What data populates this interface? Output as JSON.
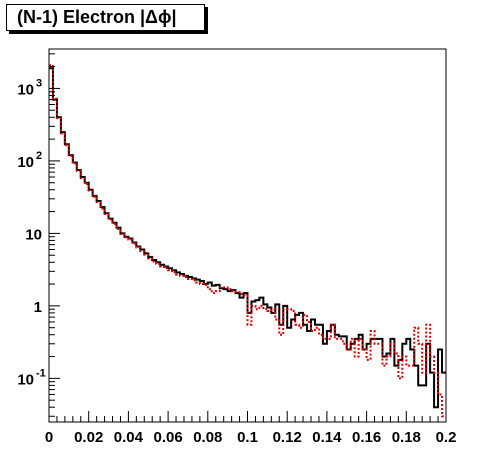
{
  "title": "(N-1) Electron |Δϕ|",
  "chart_data": {
    "type": "step",
    "title": "(N-1) Electron |Δϕ|",
    "xlabel": "",
    "ylabel": "",
    "xlim": [
      0,
      0.2
    ],
    "ylim": [
      0.025,
      3500
    ],
    "y_scale": "log",
    "x_tick_labels": [
      "0",
      "0.02",
      "0.04",
      "0.06",
      "0.08",
      "0.1",
      "0.12",
      "0.14",
      "0.16",
      "0.18",
      "0.2"
    ],
    "y_tick_labels": [
      {
        "value": 0.1,
        "base": "10",
        "exp": "-1"
      },
      {
        "value": 1,
        "base": "1",
        "exp": ""
      },
      {
        "value": 10,
        "base": "10",
        "exp": ""
      },
      {
        "value": 100,
        "base": "10",
        "exp": "2"
      },
      {
        "value": 1000,
        "base": "10",
        "exp": "3"
      }
    ],
    "bin_width": 0.002,
    "series": [
      {
        "color": "#000000",
        "style": "solid",
        "values": [
          1900,
          700,
          400,
          250,
          170,
          120,
          95,
          75,
          60,
          50,
          40,
          33,
          28,
          23,
          19,
          16,
          14,
          12,
          10,
          9,
          8.5,
          7.5,
          6.6,
          6.0,
          5.3,
          4.7,
          4.3,
          4.0,
          3.7,
          3.5,
          3.3,
          3.1,
          2.9,
          2.75,
          2.6,
          2.5,
          2.4,
          2.3,
          2.2,
          2.0,
          2.1,
          1.9,
          1.95,
          1.75,
          1.7,
          1.6,
          1.65,
          1.5,
          1.3,
          1.5,
          0.8,
          1.15,
          1.2,
          1.3,
          1.05,
          0.95,
          0.8,
          1.05,
          0.55,
          1.0,
          0.5,
          0.65,
          0.75,
          0.8,
          0.55,
          0.45,
          0.65,
          0.55,
          0.55,
          0.3,
          0.45,
          0.55,
          0.4,
          0.38,
          0.38,
          0.25,
          0.3,
          0.35,
          0.4,
          0.25,
          0.3,
          0.35,
          0.35,
          0.35,
          0.2,
          0.22,
          0.35,
          0.15,
          0.18,
          0.3,
          0.35,
          0.25,
          0.15,
          0.08,
          0.08,
          0.3,
          0.12,
          0.04,
          0.25,
          0.12
        ]
      },
      {
        "color": "#e00000",
        "style": "dotted",
        "values": [
          2100,
          720,
          390,
          240,
          165,
          118,
          92,
          73,
          58,
          48,
          39,
          32,
          27,
          22,
          18.5,
          15.5,
          13.5,
          11.5,
          9.8,
          8.8,
          8.2,
          7.2,
          6.4,
          5.7,
          5.1,
          4.5,
          4.1,
          3.8,
          3.5,
          3.3,
          3.1,
          2.9,
          2.7,
          2.6,
          2.5,
          2.35,
          2.25,
          2.1,
          2.0,
          1.95,
          1.7,
          1.5,
          1.6,
          1.8,
          1.8,
          1.7,
          1.6,
          1.55,
          1.45,
          1.4,
          0.55,
          1.0,
          0.9,
          1.0,
          0.9,
          0.85,
          0.9,
          0.65,
          0.4,
          0.9,
          0.9,
          0.85,
          0.55,
          0.5,
          0.75,
          0.6,
          0.45,
          0.5,
          0.4,
          0.35,
          0.35,
          0.55,
          0.35,
          0.35,
          0.3,
          0.25,
          0.35,
          0.2,
          0.35,
          0.25,
          0.18,
          0.45,
          0.3,
          0.3,
          0.15,
          0.2,
          0.3,
          0.22,
          0.1,
          0.2,
          0.15,
          0.15,
          0.5,
          0.3,
          0.12,
          0.55,
          0.2,
          0.12,
          0.06,
          0.03
        ]
      }
    ]
  }
}
